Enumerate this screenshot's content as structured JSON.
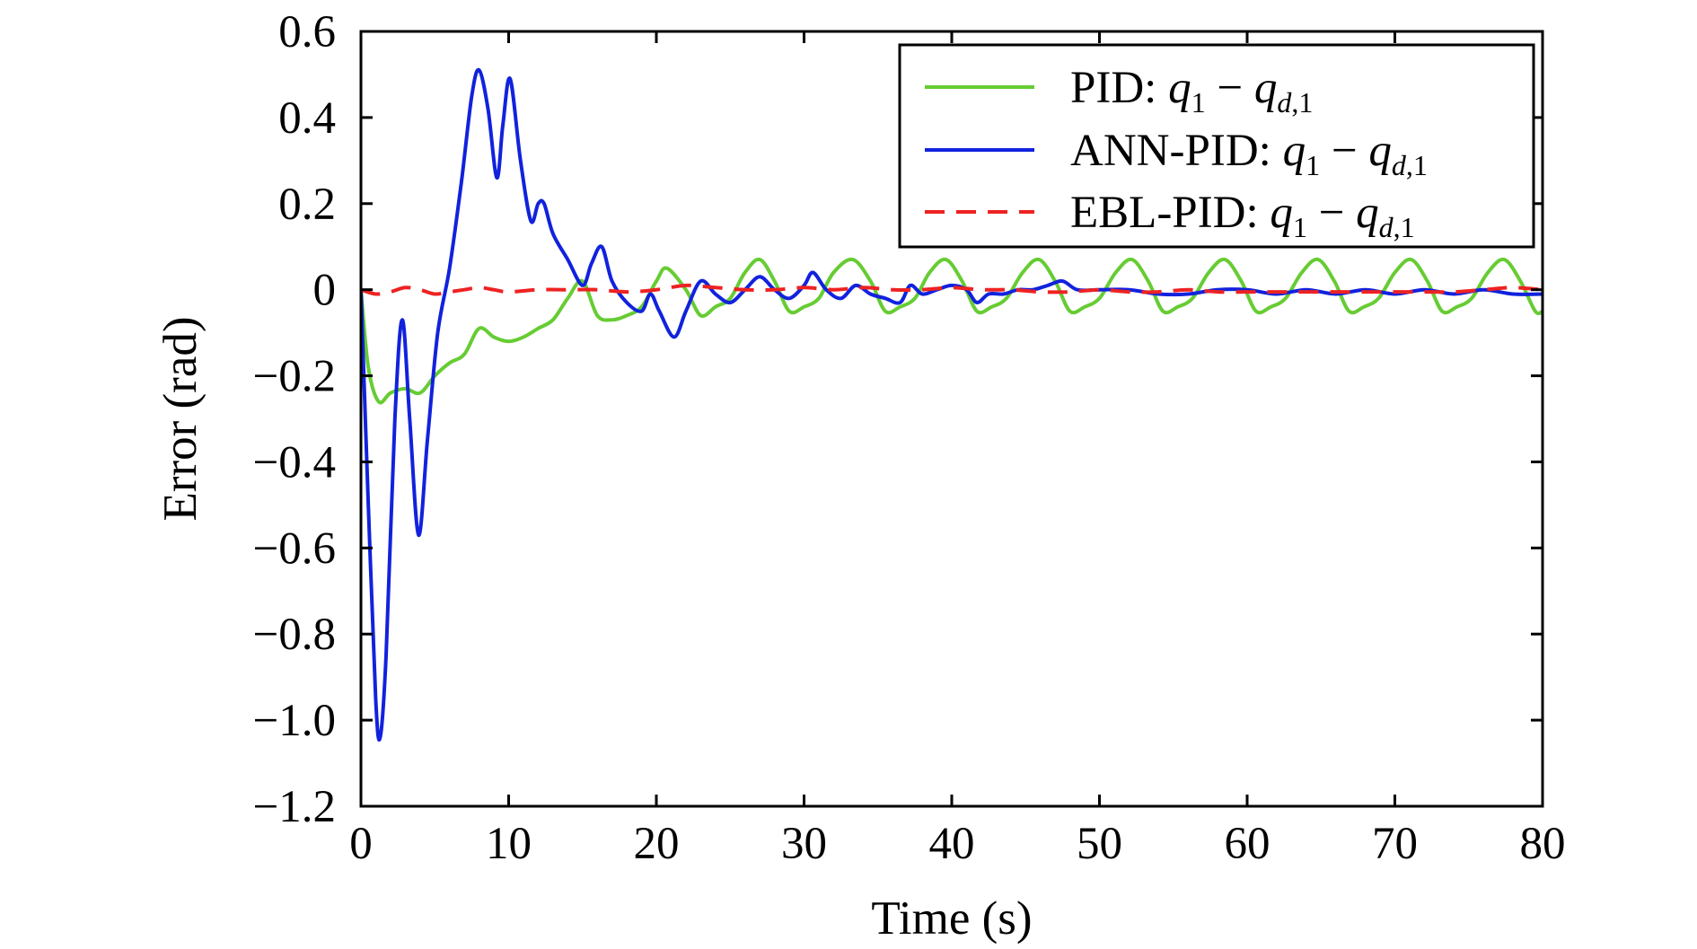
{
  "chart_data": {
    "type": "line",
    "title": "",
    "xlabel": "Time (s)",
    "ylabel": "Error (rad)",
    "xlim": [
      0,
      80
    ],
    "ylim": [
      -1.2,
      0.6
    ],
    "x_ticks": [
      0,
      10,
      20,
      30,
      40,
      50,
      60,
      70,
      80
    ],
    "x_tick_labels": [
      "0",
      "10",
      "20",
      "30",
      "40",
      "50",
      "60",
      "70",
      "80"
    ],
    "y_ticks": [
      0.6,
      0.4,
      0.2,
      0,
      -0.2,
      -0.4,
      -0.6,
      -0.8,
      -1.0,
      -1.2
    ],
    "y_tick_labels": [
      "0.6",
      "0.4",
      "0.2",
      "0",
      "−0.2",
      "−0.4",
      "−0.6",
      "−0.8",
      "−1.0",
      "−1.2"
    ],
    "grid": false,
    "legend_position": "top-right",
    "series": [
      {
        "name": "PID: q1 − qd,1",
        "legend": {
          "prefix": "PID: ",
          "var": "q",
          "var_sub": "1",
          "op": " − ",
          "var2": "q",
          "var2_sub": "d,1"
        },
        "color": "#66cc33",
        "dash": "solid",
        "points": [
          [
            0,
            0
          ],
          [
            0.5,
            -0.18
          ],
          [
            1.2,
            -0.26
          ],
          [
            2,
            -0.24
          ],
          [
            3,
            -0.23
          ],
          [
            4,
            -0.24
          ],
          [
            5,
            -0.2
          ],
          [
            6,
            -0.17
          ],
          [
            7,
            -0.15
          ],
          [
            8,
            -0.09
          ],
          [
            9,
            -0.11
          ],
          [
            10,
            -0.12
          ],
          [
            11,
            -0.11
          ],
          [
            12,
            -0.09
          ],
          [
            13,
            -0.07
          ],
          [
            14,
            -0.02
          ],
          [
            15,
            0.02
          ],
          [
            16,
            -0.06
          ],
          [
            17,
            -0.07
          ],
          [
            18,
            -0.06
          ],
          [
            19,
            -0.04
          ],
          [
            20,
            0.02
          ],
          [
            20.7,
            0.05
          ],
          [
            22,
            0
          ],
          [
            23,
            -0.06
          ],
          [
            24,
            -0.04
          ],
          [
            25,
            -0.02
          ],
          [
            26,
            0.04
          ],
          [
            27,
            0.07
          ],
          [
            28,
            0.02
          ],
          [
            29,
            -0.05
          ],
          [
            30,
            -0.04
          ],
          [
            31,
            -0.02
          ],
          [
            32,
            0.04
          ],
          [
            33.3,
            0.07
          ],
          [
            34.5,
            0.02
          ],
          [
            35.5,
            -0.05
          ],
          [
            36.5,
            -0.04
          ],
          [
            37.5,
            -0.02
          ],
          [
            38.5,
            0.04
          ],
          [
            39.6,
            0.07
          ],
          [
            40.7,
            0.02
          ],
          [
            41.7,
            -0.05
          ],
          [
            42.7,
            -0.04
          ],
          [
            43.7,
            -0.02
          ],
          [
            44.8,
            0.04
          ],
          [
            45.9,
            0.07
          ],
          [
            47,
            0.02
          ],
          [
            48,
            -0.05
          ],
          [
            49,
            -0.04
          ],
          [
            50,
            -0.02
          ],
          [
            51.1,
            0.04
          ],
          [
            52.2,
            0.07
          ],
          [
            53.3,
            0.02
          ],
          [
            54.3,
            -0.05
          ],
          [
            55.3,
            -0.04
          ],
          [
            56.3,
            -0.02
          ],
          [
            57.4,
            0.04
          ],
          [
            58.5,
            0.07
          ],
          [
            59.6,
            0.02
          ],
          [
            60.6,
            -0.05
          ],
          [
            61.6,
            -0.04
          ],
          [
            62.6,
            -0.02
          ],
          [
            63.7,
            0.04
          ],
          [
            64.8,
            0.07
          ],
          [
            65.9,
            0.02
          ],
          [
            66.9,
            -0.05
          ],
          [
            67.9,
            -0.04
          ],
          [
            68.9,
            -0.02
          ],
          [
            70,
            0.04
          ],
          [
            71.1,
            0.07
          ],
          [
            72.2,
            0.02
          ],
          [
            73.2,
            -0.05
          ],
          [
            74.2,
            -0.04
          ],
          [
            75.2,
            -0.02
          ],
          [
            76.3,
            0.04
          ],
          [
            77.4,
            0.07
          ],
          [
            78.5,
            0.02
          ],
          [
            79.5,
            -0.05
          ],
          [
            80,
            -0.05
          ]
        ]
      },
      {
        "name": "ANN-PID: q1 − qd,1",
        "legend": {
          "prefix": "ANN-PID: ",
          "var": "q",
          "var_sub": "1",
          "op": " − ",
          "var2": "q",
          "var2_sub": "d,1"
        },
        "color": "#1122dd",
        "dash": "solid",
        "points": [
          [
            0,
            0
          ],
          [
            0.5,
            -0.5
          ],
          [
            1,
            -0.95
          ],
          [
            1.3,
            -1.04
          ],
          [
            1.7,
            -0.85
          ],
          [
            2.3,
            -0.3
          ],
          [
            2.8,
            -0.07
          ],
          [
            3.3,
            -0.3
          ],
          [
            3.9,
            -0.57
          ],
          [
            4.5,
            -0.35
          ],
          [
            5.2,
            -0.1
          ],
          [
            6,
            0.05
          ],
          [
            6.8,
            0.25
          ],
          [
            7.5,
            0.45
          ],
          [
            8,
            0.51
          ],
          [
            8.6,
            0.42
          ],
          [
            9.2,
            0.26
          ],
          [
            9.6,
            0.38
          ],
          [
            10.1,
            0.49
          ],
          [
            10.8,
            0.3
          ],
          [
            11.5,
            0.16
          ],
          [
            12,
            0.2
          ],
          [
            12.4,
            0.2
          ],
          [
            13,
            0.13
          ],
          [
            14,
            0.07
          ],
          [
            15,
            0.01
          ],
          [
            15.6,
            0.06
          ],
          [
            16.3,
            0.1
          ],
          [
            17,
            0.02
          ],
          [
            18,
            -0.03
          ],
          [
            19,
            -0.05
          ],
          [
            19.6,
            -0.01
          ],
          [
            20.2,
            -0.05
          ],
          [
            21.2,
            -0.11
          ],
          [
            22,
            -0.05
          ],
          [
            23,
            0.02
          ],
          [
            24,
            -0.01
          ],
          [
            25,
            -0.03
          ],
          [
            26,
            0
          ],
          [
            27,
            0.03
          ],
          [
            28,
            0
          ],
          [
            29,
            -0.02
          ],
          [
            30,
            0.01
          ],
          [
            30.6,
            0.04
          ],
          [
            31.5,
            0
          ],
          [
            32.5,
            -0.02
          ],
          [
            33.5,
            0.01
          ],
          [
            34.5,
            -0.01
          ],
          [
            35.5,
            -0.02
          ],
          [
            36.5,
            -0.03
          ],
          [
            37.2,
            0.01
          ],
          [
            38,
            -0.01
          ],
          [
            39,
            0
          ],
          [
            40,
            0.01
          ],
          [
            41,
            0
          ],
          [
            41.7,
            -0.03
          ],
          [
            42.5,
            -0.01
          ],
          [
            43.5,
            -0.01
          ],
          [
            44.5,
            0
          ],
          [
            45.5,
            0
          ],
          [
            46.5,
            0.01
          ],
          [
            47.5,
            0.02
          ],
          [
            48.5,
            0
          ],
          [
            50,
            0
          ],
          [
            52,
            0
          ],
          [
            54,
            -0.01
          ],
          [
            56,
            -0.01
          ],
          [
            58,
            0
          ],
          [
            60,
            0
          ],
          [
            62,
            -0.01
          ],
          [
            64,
            0
          ],
          [
            66,
            -0.01
          ],
          [
            68,
            0
          ],
          [
            70,
            -0.01
          ],
          [
            72,
            0
          ],
          [
            74,
            -0.01
          ],
          [
            76,
            0
          ],
          [
            78,
            -0.01
          ],
          [
            80,
            -0.01
          ]
        ]
      },
      {
        "name": "EBL-PID: q1 − qd,1",
        "legend": {
          "prefix": "EBL-PID: ",
          "var": "q",
          "var_sub": "1",
          "op": " − ",
          "var2": "q",
          "var2_sub": "d,1"
        },
        "color": "#ee2222",
        "dash": "dashed",
        "points": [
          [
            0,
            0
          ],
          [
            1,
            -0.01
          ],
          [
            2,
            -0.005
          ],
          [
            3,
            0.005
          ],
          [
            4,
            0
          ],
          [
            5,
            -0.01
          ],
          [
            6,
            -0.005
          ],
          [
            7,
            0
          ],
          [
            8,
            0.005
          ],
          [
            9,
            0
          ],
          [
            10,
            -0.005
          ],
          [
            12,
            0
          ],
          [
            14,
            0
          ],
          [
            16,
            0
          ],
          [
            18,
            -0.005
          ],
          [
            20,
            0
          ],
          [
            22,
            0.01
          ],
          [
            24,
            0.005
          ],
          [
            26,
            0
          ],
          [
            28,
            0
          ],
          [
            30,
            0.005
          ],
          [
            32,
            0
          ],
          [
            34,
            0.005
          ],
          [
            36,
            0
          ],
          [
            38,
            0
          ],
          [
            40,
            0.005
          ],
          [
            42,
            0
          ],
          [
            44,
            0
          ],
          [
            46,
            -0.005
          ],
          [
            48,
            -0.005
          ],
          [
            50,
            0
          ],
          [
            52,
            -0.005
          ],
          [
            54,
            -0.005
          ],
          [
            56,
            0
          ],
          [
            58,
            -0.005
          ],
          [
            60,
            -0.005
          ],
          [
            62,
            -0.005
          ],
          [
            64,
            -0.005
          ],
          [
            66,
            -0.005
          ],
          [
            68,
            -0.005
          ],
          [
            70,
            -0.005
          ],
          [
            72,
            -0.005
          ],
          [
            74,
            -0.005
          ],
          [
            76,
            0
          ],
          [
            78,
            0.005
          ],
          [
            80,
            0
          ]
        ]
      }
    ]
  }
}
